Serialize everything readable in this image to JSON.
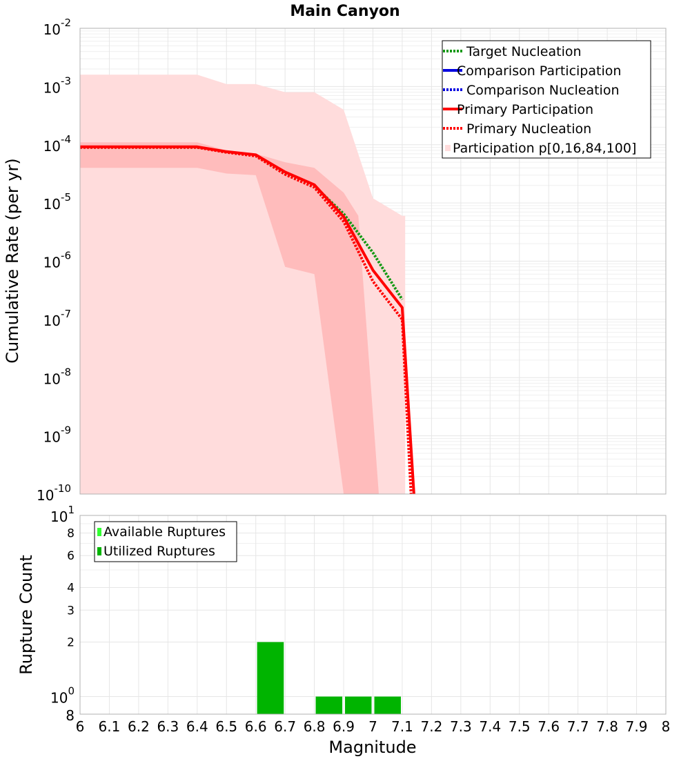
{
  "chart_data": [
    {
      "type": "line",
      "title": "Main Canyon",
      "xlabel": "",
      "ylabel": "Cumulative Rate (per yr)",
      "xlim": [
        6,
        8
      ],
      "ylim": [
        1e-10,
        0.01
      ],
      "yscale": "log",
      "grid": true,
      "legend_position": "top-right",
      "y_ticks": [
        {
          "base": "10",
          "exp": "-2"
        },
        {
          "base": "10",
          "exp": "-3"
        },
        {
          "base": "10",
          "exp": "-4"
        },
        {
          "base": "10",
          "exp": "-5"
        },
        {
          "base": "10",
          "exp": "-6"
        },
        {
          "base": "10",
          "exp": "-7"
        },
        {
          "base": "10",
          "exp": "-8"
        },
        {
          "base": "10",
          "exp": "-9"
        },
        {
          "base": "10",
          "exp": "-10"
        }
      ],
      "bands": [
        {
          "name": "Participation p[0,16,84,100]",
          "color": "#ffdcdc",
          "x": [
            6.0,
            6.4,
            6.5,
            6.6,
            6.7,
            6.8,
            6.9,
            7.0,
            7.1,
            7.11
          ],
          "lower": [
            1e-10,
            1e-10,
            1e-10,
            1e-10,
            1e-10,
            1e-10,
            1e-10,
            1e-10,
            1e-10,
            1e-10
          ],
          "upper": [
            0.0016,
            0.0016,
            0.0011,
            0.0011,
            0.0008,
            0.0008,
            0.0004,
            1.2e-05,
            6e-06,
            6e-06
          ]
        },
        {
          "name": "",
          "color": "#ffbcbc",
          "x": [
            6.0,
            6.4,
            6.5,
            6.6,
            6.7,
            6.8,
            6.9,
            6.95,
            7.02
          ],
          "lower": [
            4e-05,
            4e-05,
            3.2e-05,
            3e-05,
            8e-07,
            6e-07,
            1e-10,
            1e-10,
            1e-10
          ],
          "upper": [
            0.00011,
            0.00011,
            8e-05,
            7e-05,
            5e-05,
            4e-05,
            1.5e-05,
            6e-06,
            1e-10
          ]
        }
      ],
      "series": [
        {
          "name": "Target Nucleation",
          "color": "#139913",
          "style": "dotted",
          "x": [
            6.0,
            6.4,
            6.5,
            6.6,
            6.7,
            6.8,
            6.9,
            7.0,
            7.1
          ],
          "y": [
            9e-05,
            9e-05,
            7.5e-05,
            6.5e-05,
            3.2e-05,
            1.95e-05,
            6.5e-06,
            1.4e-06,
            2.2e-07
          ]
        },
        {
          "name": "Comparison Participation",
          "color": "#0000e0",
          "style": "solid",
          "x": [],
          "y": []
        },
        {
          "name": "Comparison Nucleation",
          "color": "#0000e0",
          "style": "dotted",
          "x": [],
          "y": []
        },
        {
          "name": "Primary Participation",
          "color": "#ff0000",
          "style": "solid",
          "x": [
            6.0,
            6.4,
            6.5,
            6.6,
            6.7,
            6.8,
            6.9,
            7.0,
            7.1,
            7.14
          ],
          "y": [
            9.2e-05,
            9.2e-05,
            7.6e-05,
            6.7e-05,
            3.4e-05,
            2.05e-05,
            5.8e-06,
            7e-07,
            1.6e-07,
            1e-10
          ]
        },
        {
          "name": "Primary Nucleation",
          "color": "#ff0000",
          "style": "dotted",
          "x": [
            6.0,
            6.4,
            6.5,
            6.6,
            6.7,
            6.8,
            6.9,
            7.0,
            7.1,
            7.13
          ],
          "y": [
            9e-05,
            9e-05,
            7.4e-05,
            6.4e-05,
            3.1e-05,
            1.85e-05,
            4.8e-06,
            4.5e-07,
            1e-07,
            1e-10
          ]
        }
      ],
      "legend": [
        {
          "name": "Target Nucleation",
          "color": "#139913",
          "style": "dotted"
        },
        {
          "name": "Comparison Participation",
          "color": "#0000e0",
          "style": "solid"
        },
        {
          "name": "Comparison Nucleation",
          "color": "#0000e0",
          "style": "dotted"
        },
        {
          "name": "Primary Participation",
          "color": "#ff0000",
          "style": "solid"
        },
        {
          "name": "Primary Nucleation",
          "color": "#ff0000",
          "style": "dotted"
        },
        {
          "name": "Participation p[0,16,84,100]",
          "color": "#ffdcdc",
          "style": "box"
        }
      ]
    },
    {
      "type": "bar",
      "title": "",
      "xlabel": "Magnitude",
      "ylabel": "Rupture Count",
      "xlim": [
        6,
        8
      ],
      "ylim": [
        0.8,
        10
      ],
      "yscale": "log",
      "grid": true,
      "legend_position": "top-left",
      "x_tick_labels": [
        "6",
        "6.1",
        "6.2",
        "6.3",
        "6.4",
        "6.5",
        "6.6",
        "6.7",
        "6.8",
        "6.9",
        "7",
        "7.1",
        "7.2",
        "7.3",
        "7.4",
        "7.5",
        "7.6",
        "7.7",
        "7.8",
        "7.9",
        "8"
      ],
      "y_ticks": [
        {
          "value": 10,
          "base": "10",
          "exp": "1",
          "major": true
        },
        {
          "value": 8,
          "label": "8",
          "major": false
        },
        {
          "value": 6,
          "label": "6",
          "major": false
        },
        {
          "value": 4,
          "label": "4",
          "major": false
        },
        {
          "value": 3,
          "label": "3",
          "major": false
        },
        {
          "value": 2,
          "label": "2",
          "major": false
        },
        {
          "value": 1,
          "base": "10",
          "exp": "0",
          "major": true
        },
        {
          "value": 0.8,
          "label": "8",
          "major": true
        }
      ],
      "bin_width": 0.1,
      "series": [
        {
          "name": "Available Ruptures",
          "color": "#33ff33",
          "bins": [
            6.6,
            6.8,
            6.9,
            7.0
          ],
          "values": [
            2,
            1,
            1,
            1
          ]
        },
        {
          "name": "Utilized Ruptures",
          "color": "#00b400",
          "bins": [
            6.6,
            6.8,
            6.9,
            7.0
          ],
          "values": [
            2,
            1,
            1,
            1
          ]
        }
      ],
      "legend": [
        {
          "name": "Available Ruptures",
          "color": "#33ff33"
        },
        {
          "name": "Utilized Ruptures",
          "color": "#00b400"
        }
      ]
    }
  ]
}
